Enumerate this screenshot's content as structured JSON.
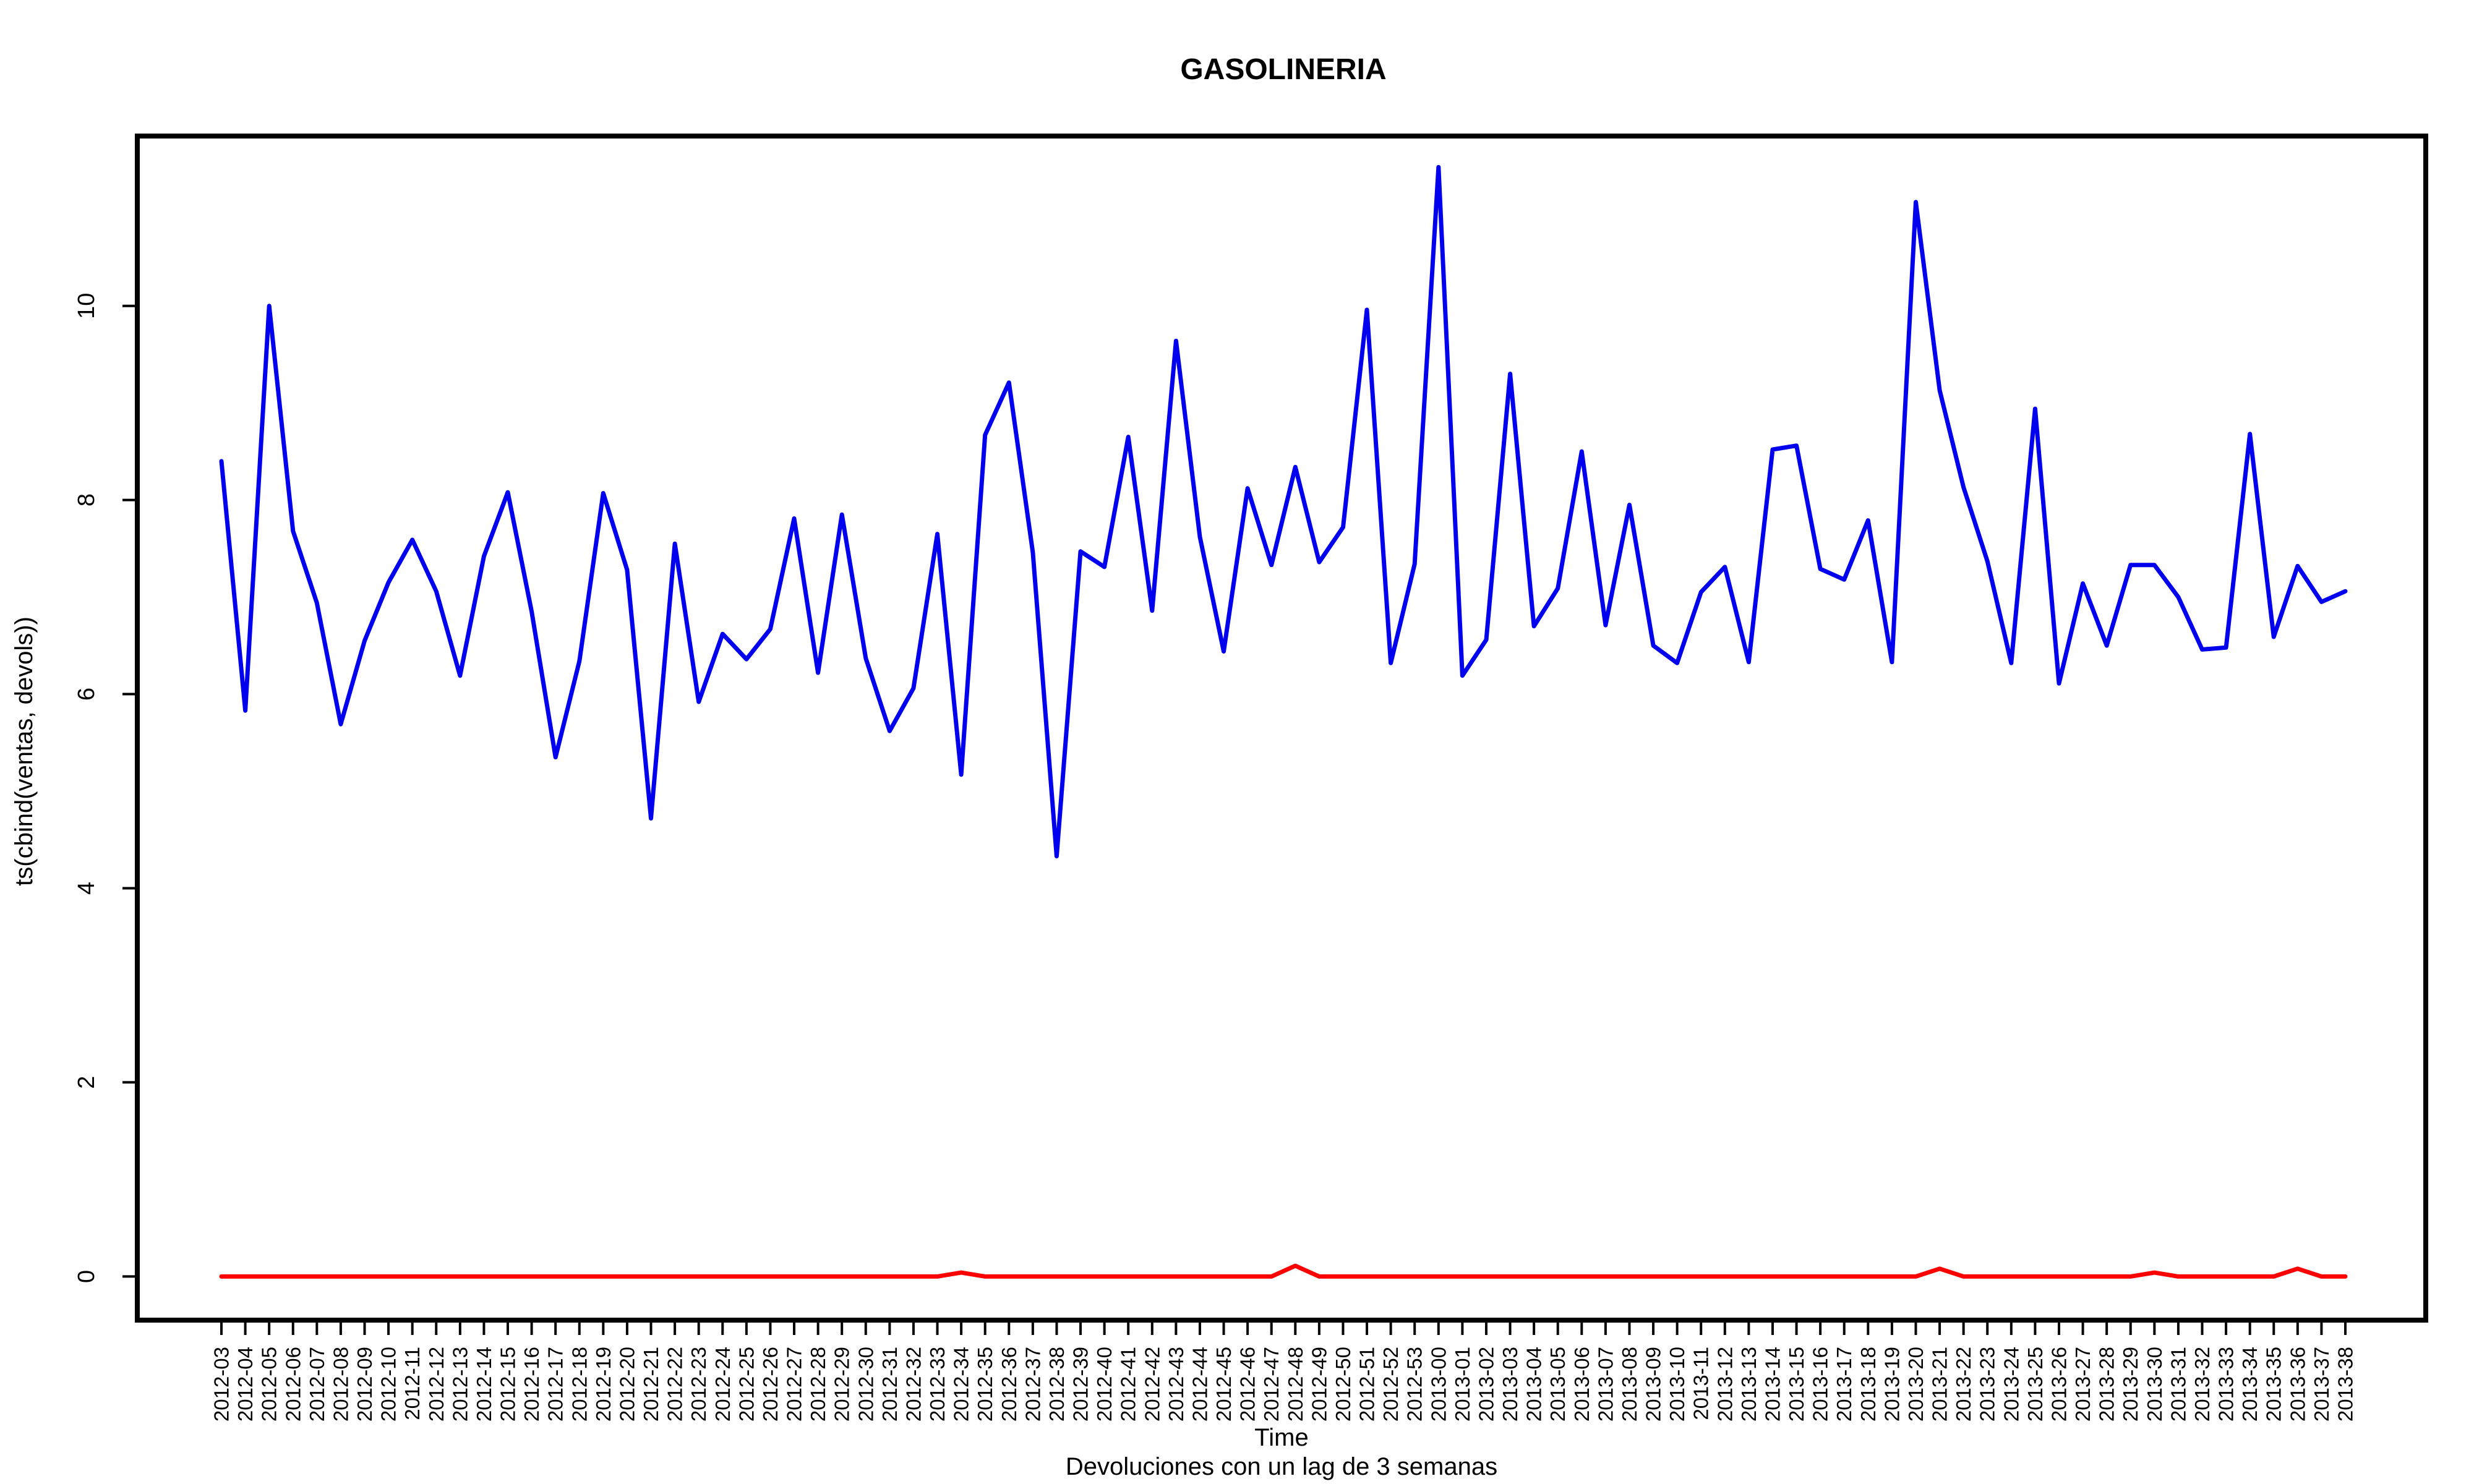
{
  "chart_data": {
    "type": "line",
    "title": "GASOLINERIA",
    "xlabel": "Time",
    "subtitle": "Devoluciones con un lag de 3 semanas",
    "ylabel": "ts(cbind(ventas, devols))",
    "ylim": [
      -0.45,
      11.75
    ],
    "yticks": [
      0,
      2,
      4,
      6,
      8,
      10
    ],
    "grid": false,
    "categories": [
      "2012-03",
      "2012-04",
      "2012-05",
      "2012-06",
      "2012-07",
      "2012-08",
      "2012-09",
      "2012-10",
      "2012-11",
      "2012-12",
      "2012-13",
      "2012-14",
      "2012-15",
      "2012-16",
      "2012-17",
      "2012-18",
      "2012-19",
      "2012-20",
      "2012-21",
      "2012-22",
      "2012-23",
      "2012-24",
      "2012-25",
      "2012-26",
      "2012-27",
      "2012-28",
      "2012-29",
      "2012-30",
      "2012-31",
      "2012-32",
      "2012-33",
      "2012-34",
      "2012-35",
      "2012-36",
      "2012-37",
      "2012-38",
      "2012-39",
      "2012-40",
      "2012-41",
      "2012-42",
      "2012-43",
      "2012-44",
      "2012-45",
      "2012-46",
      "2012-47",
      "2012-48",
      "2012-49",
      "2012-50",
      "2012-51",
      "2012-52",
      "2012-53",
      "2013-00",
      "2013-01",
      "2013-02",
      "2013-03",
      "2013-04",
      "2013-05",
      "2013-06",
      "2013-07",
      "2013-08",
      "2013-09",
      "2013-10",
      "2013-11",
      "2013-12",
      "2013-13",
      "2013-14",
      "2013-15",
      "2013-16",
      "2013-17",
      "2013-18",
      "2013-19",
      "2013-20",
      "2013-21",
      "2013-22",
      "2013-23",
      "2013-24",
      "2013-25",
      "2013-26",
      "2013-27",
      "2013-28",
      "2013-29",
      "2013-30",
      "2013-31",
      "2013-32",
      "2013-33",
      "2013-34",
      "2013-35",
      "2013-36",
      "2013-37",
      "2013-38"
    ],
    "series": [
      {
        "color": "#0000ee",
        "values": [
          8.4,
          5.83,
          10.0,
          7.68,
          6.94,
          5.69,
          6.55,
          7.15,
          7.59,
          7.06,
          6.19,
          7.42,
          8.08,
          6.85,
          5.35,
          6.34,
          8.07,
          7.28,
          4.72,
          7.55,
          5.92,
          6.62,
          6.36,
          6.67,
          7.81,
          6.22,
          7.85,
          6.37,
          5.62,
          6.06,
          7.65,
          5.17,
          8.67,
          9.21,
          7.46,
          4.33,
          7.47,
          7.31,
          8.65,
          6.86,
          9.64,
          7.62,
          6.44,
          8.12,
          7.33,
          8.34,
          7.36,
          7.72,
          9.96,
          6.32,
          7.34,
          11.43,
          6.19,
          6.56,
          9.3,
          6.7,
          7.09,
          8.5,
          6.71,
          7.95,
          6.5,
          6.32,
          7.05,
          7.31,
          6.33,
          8.52,
          8.56,
          7.29,
          7.18,
          7.79,
          6.33,
          11.07,
          9.13,
          8.13,
          7.37,
          6.32,
          8.94,
          6.11,
          7.14,
          6.5,
          7.33,
          7.33,
          7.0,
          6.46,
          6.48,
          8.68,
          6.59,
          7.32,
          6.95,
          7.06
        ]
      },
      {
        "color": "#ff0000",
        "values": [
          0,
          0,
          0,
          0,
          0,
          0,
          0,
          0,
          0,
          0,
          0,
          0,
          0,
          0,
          0,
          0,
          0,
          0,
          0,
          0,
          0,
          0,
          0,
          0,
          0,
          0,
          0,
          0,
          0,
          0,
          0,
          0.04,
          0,
          0,
          0,
          0,
          0,
          0,
          0,
          0,
          0,
          0,
          0,
          0,
          0,
          0.11,
          0,
          0,
          0,
          0,
          0,
          0,
          0,
          0,
          0,
          0,
          0,
          0,
          0,
          0,
          0,
          0,
          0,
          0,
          0,
          0,
          0,
          0,
          0,
          0,
          0,
          0,
          0.08,
          0,
          0,
          0,
          0,
          0,
          0,
          0,
          0,
          0.04,
          0,
          0,
          0,
          0,
          0,
          0.08,
          0,
          0
        ]
      }
    ]
  }
}
